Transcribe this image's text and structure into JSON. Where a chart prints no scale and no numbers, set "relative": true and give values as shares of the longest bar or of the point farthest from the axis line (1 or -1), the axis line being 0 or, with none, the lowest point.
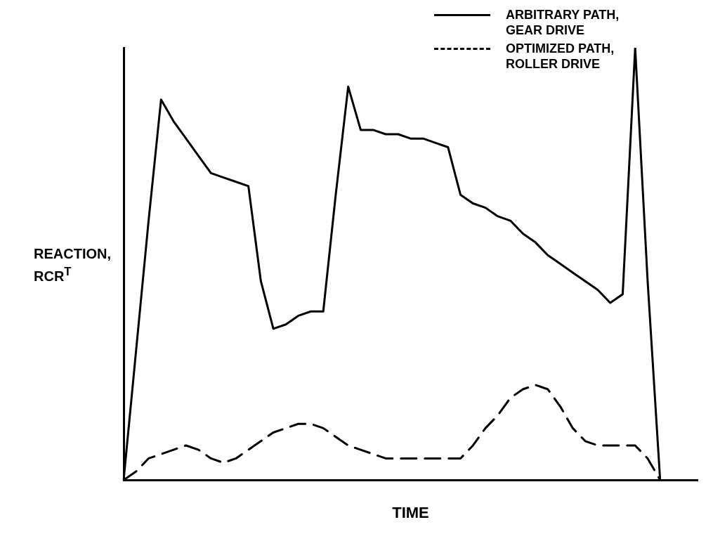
{
  "chart_data": {
    "type": "line",
    "relative": true,
    "xlabel": "TIME",
    "ylabel": "REACTION, RCR$^{T}$",
    "legend": "top right",
    "grid": false,
    "marker": "none",
    "categories": [
      null,
      null,
      null,
      null,
      null,
      null,
      null,
      null,
      null,
      null,
      null,
      null,
      null,
      null,
      null,
      null,
      null,
      null,
      null,
      null,
      null,
      null,
      null,
      null,
      null,
      null,
      null,
      null,
      null,
      null,
      null,
      null,
      null,
      null,
      null,
      null,
      null,
      null,
      null,
      null,
      null,
      null,
      null,
      null,
      null,
      null,
      null
    ],
    "series": [
      {
        "name": "ARBITRARY PATH, GEAR DRIVE",
        "color": "#000000",
        "line_style": "solid",
        "values": [
          0,
          0.3,
          0.6,
          0.88,
          0.83,
          0.79,
          0.75,
          0.71,
          0.7,
          0.69,
          0.68,
          0.46,
          0.35,
          0.36,
          0.38,
          0.39,
          0.39,
          0.66,
          0.91,
          0.81,
          0.81,
          0.8,
          0.8,
          0.79,
          0.79,
          0.78,
          0.77,
          0.66,
          0.64,
          0.63,
          0.61,
          0.6,
          0.57,
          0.55,
          0.52,
          0.5,
          0.48,
          0.46,
          0.44,
          0.41,
          0.43,
          1,
          0.46,
          0,
          null,
          null,
          null
        ]
      },
      {
        "name": "OPTIMIZED PATH, ROLLER DRIVE",
        "color": "#000000",
        "line_style": "dashed",
        "values": [
          0,
          0.02,
          0.05,
          0.06,
          0.07,
          0.08,
          0.07,
          0.05,
          0.04,
          0.05,
          0.07,
          0.09,
          0.11,
          0.12,
          0.13,
          0.13,
          0.12,
          0.1,
          0.08,
          0.07,
          0.06,
          0.05,
          0.05,
          0.05,
          0.05,
          0.05,
          0.05,
          0.05,
          0.08,
          0.12,
          0.15,
          0.19,
          0.21,
          0.22,
          0.21,
          0.17,
          0.12,
          0.09,
          0.08,
          0.08,
          0.08,
          0.08,
          0.05,
          0,
          null,
          null,
          null
        ]
      }
    ]
  }
}
